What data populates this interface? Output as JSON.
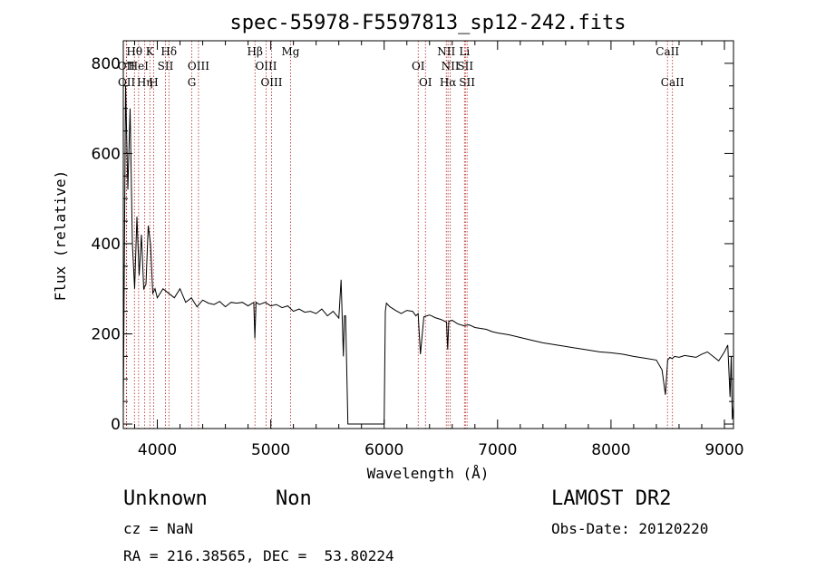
{
  "chart_data": {
    "type": "line",
    "title": "spec-55978-F5597813_sp12-242.fits",
    "xlabel": "Wavelength (Å)",
    "ylabel": "Flux (relative)",
    "xlim": [
      3700,
      9080
    ],
    "ylim": [
      -10,
      850
    ],
    "x_ticks": [
      4000,
      5000,
      6000,
      7000,
      8000,
      9000
    ],
    "y_ticks": [
      0,
      200,
      400,
      600,
      800
    ],
    "grid": false,
    "series": [
      {
        "x": [
          3700,
          3720,
          3740,
          3760,
          3780,
          3800,
          3820,
          3840,
          3860,
          3880,
          3900,
          3920,
          3940,
          3960,
          3980,
          4000,
          4050,
          4100,
          4150,
          4200,
          4250,
          4300,
          4350,
          4400,
          4450,
          4500,
          4550,
          4600,
          4650,
          4700,
          4750,
          4800,
          4850,
          4860,
          4870,
          4900,
          4950,
          5000,
          5050,
          5100,
          5150,
          5200,
          5250,
          5300,
          5350,
          5400,
          5450,
          5500,
          5550,
          5600,
          5620,
          5640,
          5650,
          5660,
          5680,
          5700,
          5800,
          5900,
          6000,
          6010,
          6020,
          6050,
          6100,
          6150,
          6200,
          6250,
          6280,
          6300,
          6320,
          6350,
          6400,
          6450,
          6500,
          6550,
          6560,
          6570,
          6600,
          6650,
          6700,
          6750,
          6800,
          6850,
          6900,
          6950,
          7000,
          7100,
          7200,
          7300,
          7400,
          7500,
          7600,
          7700,
          7800,
          7900,
          8000,
          8100,
          8200,
          8300,
          8400,
          8450,
          8480,
          8500,
          8520,
          8540,
          8560,
          8600,
          8650,
          8700,
          8750,
          8800,
          8850,
          8900,
          8950,
          9000,
          9030,
          9050,
          9060,
          9070,
          9080
        ],
        "y": [
          30,
          750,
          520,
          700,
          400,
          300,
          460,
          330,
          420,
          300,
          310,
          440,
          400,
          290,
          300,
          280,
          300,
          290,
          280,
          300,
          270,
          280,
          260,
          275,
          268,
          265,
          272,
          260,
          270,
          268,
          270,
          262,
          270,
          190,
          270,
          265,
          270,
          262,
          265,
          258,
          262,
          250,
          255,
          248,
          250,
          245,
          255,
          240,
          250,
          235,
          320,
          150,
          240,
          240,
          0,
          0,
          0,
          0,
          0,
          250,
          268,
          260,
          252,
          245,
          252,
          250,
          240,
          245,
          155,
          238,
          242,
          236,
          232,
          226,
          165,
          228,
          230,
          222,
          218,
          220,
          214,
          212,
          210,
          205,
          202,
          198,
          192,
          186,
          180,
          176,
          172,
          168,
          164,
          160,
          158,
          155,
          150,
          146,
          142,
          120,
          65,
          142,
          148,
          145,
          150,
          148,
          152,
          150,
          148,
          155,
          160,
          150,
          140,
          160,
          175,
          60,
          150,
          10,
          40
        ]
      }
    ],
    "line_labels": [
      {
        "text": "Hθ",
        "row": 0,
        "x": 3798
      },
      {
        "text": "K",
        "row": 0,
        "x": 3934
      },
      {
        "text": "Hδ",
        "row": 0,
        "x": 4102
      },
      {
        "text": "Hβ",
        "row": 0,
        "x": 4861
      },
      {
        "text": "Mg",
        "row": 0,
        "x": 5175
      },
      {
        "text": "NII",
        "row": 0,
        "x": 6548
      },
      {
        "text": "Li",
        "row": 0,
        "x": 6708
      },
      {
        "text": "CaII",
        "row": 0,
        "x": 8498
      },
      {
        "text": "OII",
        "row": 1,
        "x": 3727
      },
      {
        "text": "HeI",
        "row": 1,
        "x": 3835
      },
      {
        "text": "SII",
        "row": 1,
        "x": 4072
      },
      {
        "text": "OIII",
        "row": 1,
        "x": 4363
      },
      {
        "text": "OIII",
        "row": 1,
        "x": 4959
      },
      {
        "text": "OI",
        "row": 1,
        "x": 6300
      },
      {
        "text": "NII",
        "row": 1,
        "x": 6583
      },
      {
        "text": "SII",
        "row": 1,
        "x": 6716
      },
      {
        "text": "OII",
        "row": 2,
        "x": 3729
      },
      {
        "text": "Hη",
        "row": 2,
        "x": 3889
      },
      {
        "text": "H",
        "row": 2,
        "x": 3968
      },
      {
        "text": "G",
        "row": 2,
        "x": 4304
      },
      {
        "text": "OIII",
        "row": 2,
        "x": 5007
      },
      {
        "text": "OI",
        "row": 2,
        "x": 6364
      },
      {
        "text": "Hα",
        "row": 2,
        "x": 6563
      },
      {
        "text": "SII",
        "row": 2,
        "x": 6731
      },
      {
        "text": "CaII",
        "row": 2,
        "x": 8542
      }
    ],
    "marker_lines": [
      3727,
      3729,
      3798,
      3835,
      3889,
      3934,
      3968,
      4072,
      4102,
      4304,
      4363,
      4861,
      4959,
      5007,
      5175,
      6300,
      6364,
      6548,
      6563,
      6583,
      6708,
      6716,
      6731,
      8498,
      8542
    ]
  },
  "info": {
    "object_class": "Unknown",
    "subclass": "Non",
    "survey": "LAMOST DR2",
    "cz": "cz = NaN",
    "obs_date": "Obs-Date: 20120220",
    "coords": "RA = 216.38565, DEC =  53.80224"
  },
  "colors": {
    "spectrum": "#000000",
    "marker": "#b22222",
    "axes": "#000000"
  }
}
